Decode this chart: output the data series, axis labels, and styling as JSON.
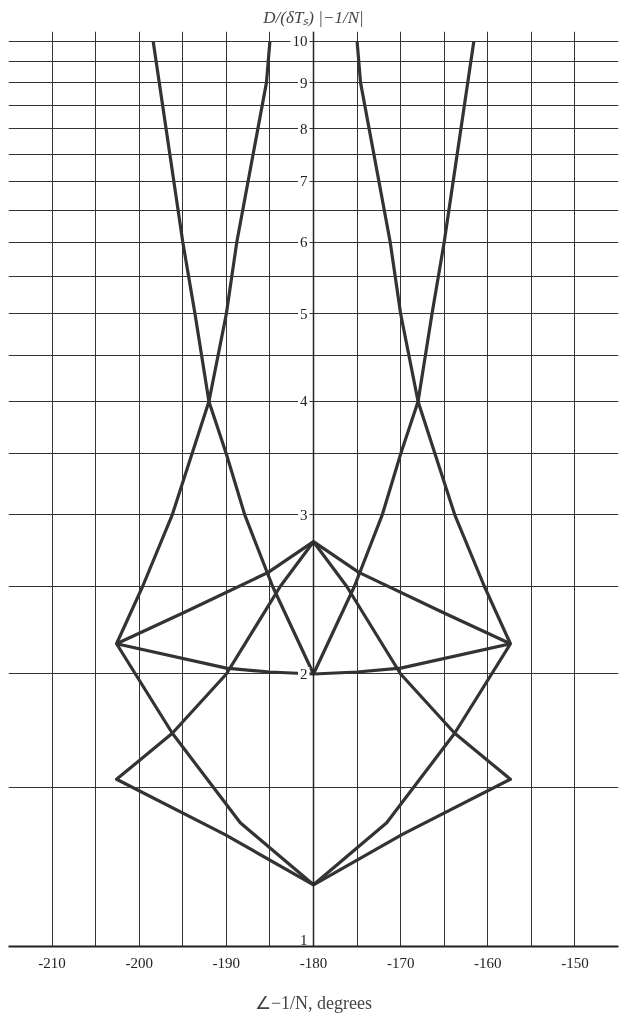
{
  "chart_data": {
    "type": "line",
    "xlabel": "∠−1/N, degrees",
    "ylabel": "D/(δTₛ) |−1/N|",
    "log": "y",
    "grid": true,
    "marker": "none",
    "line_style": "solid",
    "xlim": [
      -215,
      -145
    ],
    "ylim": [
      1,
      10.25
    ],
    "xticks": [
      -210,
      {
        "value": -205,
        "label": null
      },
      -200,
      {
        "value": -195,
        "label": null
      },
      -190,
      {
        "value": -185,
        "label": null
      },
      -180,
      {
        "value": -175,
        "label": null
      },
      -170,
      {
        "value": -165,
        "label": null
      },
      -160,
      {
        "value": -155,
        "label": null
      },
      -150
    ],
    "yticks": [
      1,
      {
        "value": 1.5,
        "label": null
      },
      2,
      {
        "value": 2.5,
        "label": null
      },
      3,
      {
        "value": 3.5,
        "label": null
      },
      4,
      {
        "value": 4.5,
        "label": null
      },
      5,
      {
        "value": 5.5,
        "label": null
      },
      6,
      {
        "value": 6.5,
        "label": null
      },
      7,
      {
        "value": 7.5,
        "label": null
      },
      8,
      {
        "value": 8.5,
        "label": null
      },
      9,
      {
        "value": 9.5,
        "label": null
      },
      10
    ],
    "series": [
      {
        "color": "#333333",
        "x": [
          -198.4,
          -195,
          -193.6,
          -192,
          -190,
          -187.9,
          -184.7,
          -180
        ],
        "values": [
          10,
          6,
          5,
          4,
          3.5,
          3,
          2.5,
          2.0
        ]
      },
      {
        "color": "#333333",
        "x": [
          -161.6,
          -165,
          -166.4,
          -168,
          -170,
          -172.1,
          -175.3,
          -180
        ],
        "values": [
          10,
          6,
          5,
          4,
          3.5,
          3,
          2.5,
          2.0
        ]
      },
      {
        "color": "#333333",
        "x": [
          -185,
          -185.4,
          -188.8,
          -190,
          -192,
          -196.2,
          -199.6,
          -202.6,
          -196.2,
          -188.4,
          -180
        ],
        "values": [
          10,
          9,
          6,
          5,
          4,
          3,
          2.5,
          2.16,
          1.72,
          1.37,
          1.17
        ]
      },
      {
        "color": "#333333",
        "x": [
          -175,
          -174.6,
          -171.2,
          -170,
          -168,
          -163.8,
          -160.4,
          -157.4,
          -163.8,
          -171.6,
          -180
        ],
        "values": [
          10,
          9,
          6,
          5,
          4,
          3,
          2.5,
          2.16,
          1.72,
          1.37,
          1.17
        ]
      },
      {
        "color": "#333333",
        "x": [
          -202.6,
          -190,
          -185,
          -180,
          -175,
          -170,
          -157.4
        ],
        "values": [
          2.16,
          2.03,
          2.01,
          2.0,
          2.01,
          2.03,
          2.16
        ]
      },
      {
        "color": "#333333",
        "x": [
          -202.6,
          -194.8,
          -185.2,
          -180,
          -174.8,
          -165.2,
          -157.4
        ],
        "values": [
          2.16,
          2.34,
          2.59,
          2.8,
          2.59,
          2.34,
          2.16
        ]
      },
      {
        "color": "#333333",
        "x": [
          -180,
          -190.2,
          -202.6,
          -196.2,
          -190,
          -183.8,
          -180
        ],
        "values": [
          1.17,
          1.33,
          1.53,
          1.72,
          2.0,
          2.5,
          2.8
        ]
      },
      {
        "color": "#333333",
        "x": [
          -180,
          -169.8,
          -157.4,
          -163.8,
          -170,
          -176.2,
          -180
        ],
        "values": [
          1.17,
          1.33,
          1.53,
          1.72,
          2.0,
          2.5,
          2.8
        ]
      }
    ]
  }
}
